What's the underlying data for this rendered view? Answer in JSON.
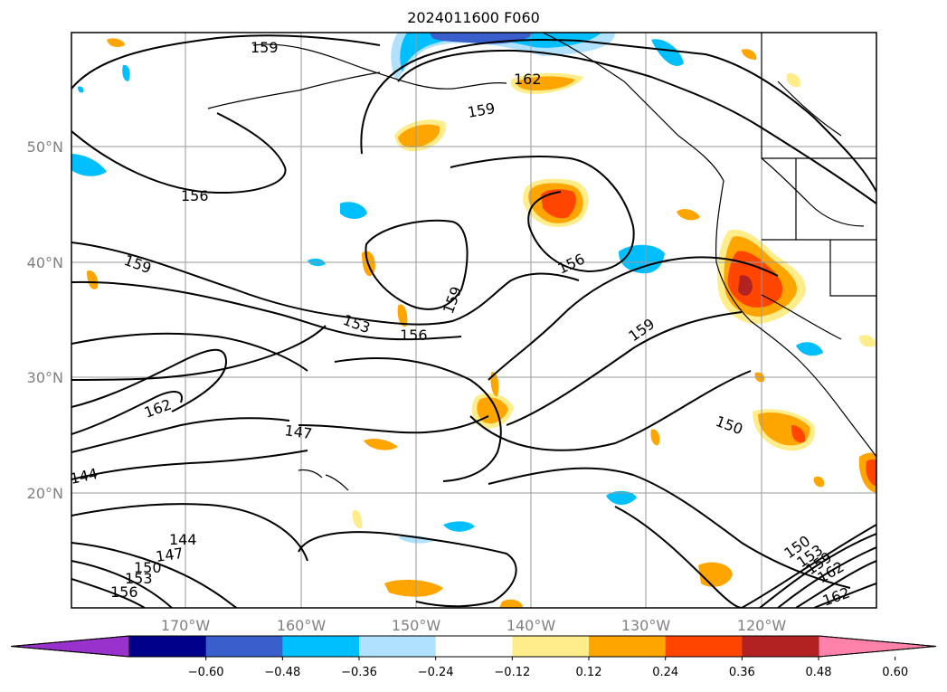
{
  "title": "2024011600 F060",
  "lat_ticks": [
    {
      "value": 50,
      "label": "50°N"
    },
    {
      "value": 40,
      "label": "40°N"
    },
    {
      "value": 30,
      "label": "30°N"
    },
    {
      "value": 20,
      "label": "20°N"
    }
  ],
  "lon_ticks": [
    {
      "value": -170,
      "label": "170°W"
    },
    {
      "value": -160,
      "label": "160°W"
    },
    {
      "value": -150,
      "label": "150°W"
    },
    {
      "value": -140,
      "label": "140°W"
    },
    {
      "value": -130,
      "label": "130°W"
    },
    {
      "value": -120,
      "label": "120°W"
    }
  ],
  "map_extent": {
    "lon_min": -180,
    "lon_max": -110,
    "lat_min": 10,
    "lat_max": 60
  },
  "gridlines": true,
  "contour_labels": [
    "159",
    "162",
    "159",
    "156",
    "159",
    "156",
    "159",
    "153",
    "156",
    "159",
    "150",
    "162",
    "147",
    "144",
    "144",
    "147",
    "150",
    "153",
    "156",
    "150",
    "153",
    "159",
    "162",
    "162"
  ],
  "colorbar": {
    "extend": "both",
    "tick_labels": [
      "−0.60",
      "−0.48",
      "−0.36",
      "−0.24",
      "−0.12",
      "0.12",
      "0.24",
      "0.36",
      "0.48",
      "0.60"
    ],
    "colors": [
      "#9932cc",
      "#00008b",
      "#3a5fcd",
      "#00bfff",
      "#b0e2ff",
      "#ffffff",
      "#ffec8b",
      "#ffa500",
      "#ff4500",
      "#b22222",
      "#ff82ab"
    ]
  }
}
